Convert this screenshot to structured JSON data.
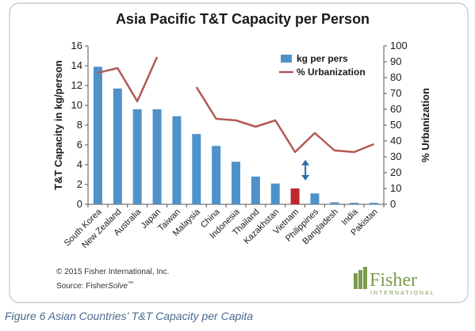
{
  "caption": "Figure 6 Asian Countries’ T&T Capacity per Capita",
  "footnote": {
    "copyright": "© 2015 Fisher International, Inc.",
    "source_prefix": "Source: Fisher",
    "source_italic": "Solve",
    "source_tm": "™"
  },
  "brand": {
    "name": "Fisher",
    "sub": "INTERNATIONAL"
  },
  "colors": {
    "bar": "#4f92c9",
    "highlight_bar": "#c0282d",
    "line": "#b05a55",
    "arrow": "#2f6fa8",
    "border": "#b9c7d1",
    "brand": "#7b9b4b"
  },
  "chart_data": {
    "type": "bar",
    "title": "Asia Pacific T&T Capacity per Person",
    "categories": [
      "South Korea",
      "New Zealand",
      "Australia",
      "Japan",
      "Taiwan",
      "Malaysia",
      "China",
      "Indonesia",
      "Thailand",
      "Kazakhstan",
      "Vietnam",
      "Philippines",
      "Bangladesh",
      "India",
      "Pakistan"
    ],
    "ylabel": "T&T Capacity in kg/person",
    "ylim": [
      0,
      16
    ],
    "yticks": [
      0,
      2,
      4,
      6,
      8,
      10,
      12,
      14,
      16
    ],
    "y2label": "% Urbanization",
    "y2lim": [
      0,
      100
    ],
    "y2ticks": [
      0,
      10,
      20,
      30,
      40,
      50,
      60,
      70,
      80,
      90,
      100
    ],
    "highlight_category": "Vietnam",
    "legend_position": "top-right",
    "series": [
      {
        "name": "kg per pers",
        "type": "bar",
        "axis": "left",
        "values": [
          13.9,
          11.7,
          9.6,
          9.6,
          8.9,
          7.1,
          5.9,
          4.3,
          2.8,
          2.1,
          1.6,
          1.1,
          0.2,
          0.15,
          0.15
        ]
      },
      {
        "name": "% Urbanization",
        "type": "line",
        "axis": "right",
        "values": [
          83,
          86,
          65,
          93,
          null,
          74,
          54,
          53,
          49,
          53,
          33,
          45,
          34,
          33,
          38
        ]
      }
    ],
    "annotation": {
      "type": "double-arrow",
      "category": "Vietnam",
      "from": 2.4,
      "to": 4.5
    }
  }
}
